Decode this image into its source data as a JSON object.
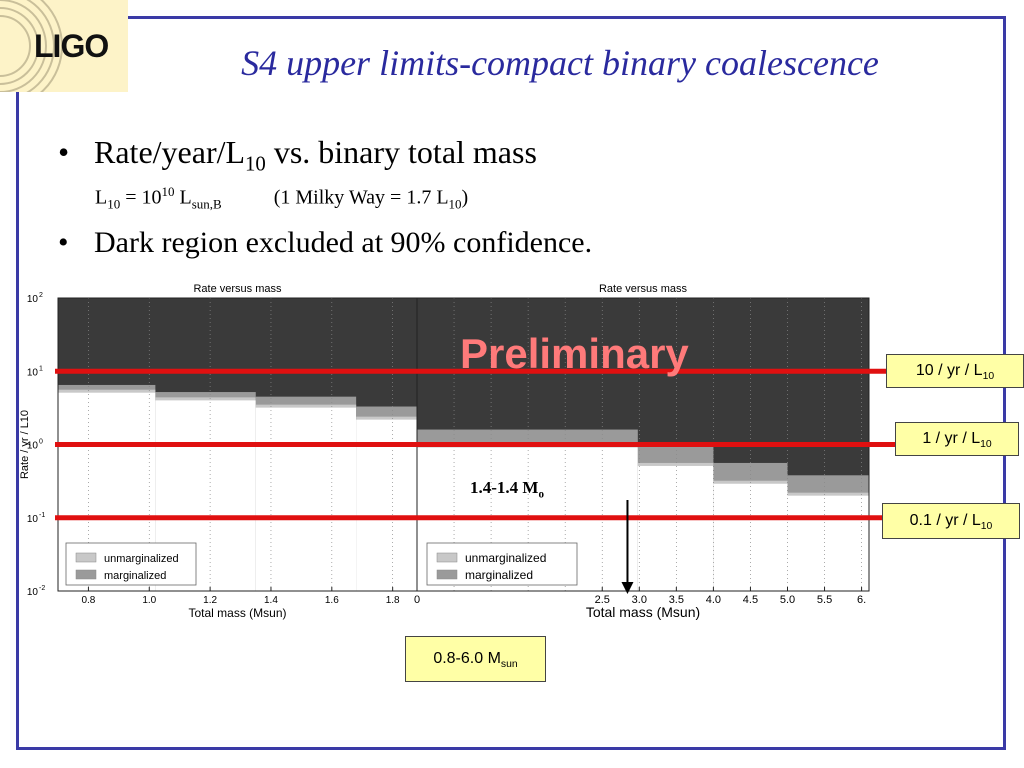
{
  "logo": {
    "text": "LIGO"
  },
  "title": "S4 upper limits-compact binary coalescence",
  "bullets": {
    "b1_main": "Rate/year/L",
    "b1_sub": "10",
    "b1_tail": " vs. binary total mass",
    "sub1_a": "L",
    "sub1_b": "10",
    "sub1_c": " = 10",
    "sub1_d": "10",
    "sub1_e": " L",
    "sub1_f": "sun,B",
    "sub1_g": "(1 Milky Way = 1.7 L",
    "sub1_h": "10",
    "sub1_i": ")",
    "b2": "Dark region excluded at 90% confidence."
  },
  "overlays": {
    "preliminary": "Preliminary",
    "bns_label_main": "1.4-1.4 M",
    "bns_label_sub": "o",
    "range_label_main": "0.8-6.0 M",
    "range_label_sub": "sun",
    "callouts": [
      {
        "main": "10 / yr / L",
        "sub": "10"
      },
      {
        "main": "1 / yr / L",
        "sub": "10"
      },
      {
        "main": "0.1 / yr / L",
        "sub": "10"
      }
    ]
  },
  "colors": {
    "excluded": "#3a3a3a",
    "marginalized": "#9a9a9a",
    "unmarginalized": "#c8c8c8",
    "red_line": "#e01010",
    "frame": "#3a3aa6",
    "title": "#2a2a9e",
    "callout_bg": "#ffffa6"
  },
  "chart_data": [
    {
      "type": "area",
      "title": "Rate versus mass",
      "xlabel": "Total mass (Msun)",
      "ylabel": "Rate / yr / L10",
      "yscale": "log",
      "xlim": [
        0.7,
        1.88
      ],
      "ylim": [
        0.01,
        100
      ],
      "x_ticks": [
        0.8,
        1.0,
        1.2,
        1.4,
        1.6,
        1.8
      ],
      "x_tick_labels": [
        "0.8",
        "1.0",
        "1.2",
        "1.4",
        "1.6",
        "1.8"
      ],
      "y_ticks": [
        0.01,
        0.1,
        1,
        10,
        100
      ],
      "y_tick_labels": [
        {
          "base": "10",
          "exp": "-2"
        },
        {
          "base": "10",
          "exp": "-1"
        },
        {
          "base": "10",
          "exp": "0"
        },
        {
          "base": "10",
          "exp": "1"
        },
        {
          "base": "10",
          "exp": "2"
        }
      ],
      "legend": {
        "placement": "bottom-left",
        "entries": [
          "unmarginalized",
          "marginalized"
        ]
      },
      "bins": [
        {
          "x0": 0.7,
          "x1": 1.02,
          "marginalized": 6.5,
          "unmarginalized": 5.6
        },
        {
          "x0": 1.02,
          "x1": 1.35,
          "marginalized": 5.2,
          "unmarginalized": 4.4
        },
        {
          "x0": 1.35,
          "x1": 1.68,
          "marginalized": 4.5,
          "unmarginalized": 3.5
        },
        {
          "x0": 1.68,
          "x1": 1.88,
          "marginalized": 3.3,
          "unmarginalized": 2.4
        }
      ]
    },
    {
      "type": "area",
      "title": "Rate versus mass",
      "xlabel": "Total mass (Msun)",
      "yscale": "log",
      "xlim": [
        0,
        6.1
      ],
      "ylim": [
        0.01,
        100
      ],
      "x_ticks": [
        0,
        0.5,
        1.0,
        1.5,
        2.0,
        2.5,
        3.0,
        3.5,
        4.0,
        4.5,
        5.0,
        5.5,
        6.0
      ],
      "x_tick_labels": [
        "0",
        "",
        "",
        "",
        "",
        "2.5",
        "3.0",
        "3.5",
        "4.0",
        "4.5",
        "5.0",
        "5.5",
        "6."
      ],
      "legend": {
        "placement": "bottom-left",
        "entries": [
          "unmarginalized",
          "marginalized"
        ]
      },
      "bins": [
        {
          "x0": 0.0,
          "x1": 2.98,
          "marginalized": 1.6,
          "unmarginalized": 1.0
        },
        {
          "x0": 2.98,
          "x1": 4.0,
          "marginalized": 0.95,
          "unmarginalized": 0.56
        },
        {
          "x0": 4.0,
          "x1": 5.0,
          "marginalized": 0.56,
          "unmarginalized": 0.32
        },
        {
          "x0": 5.0,
          "x1": 6.1,
          "marginalized": 0.38,
          "unmarginalized": 0.22
        }
      ]
    }
  ],
  "reference_lines": [
    10,
    1,
    0.1
  ],
  "bns_mass": 2.8
}
